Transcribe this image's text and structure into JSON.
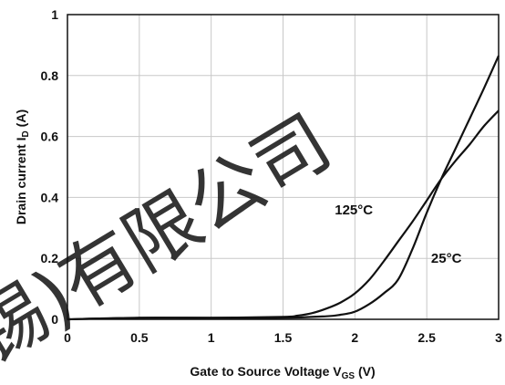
{
  "chart_data": {
    "type": "line",
    "title": "",
    "xlabel": "Gate to Source Voltage V",
    "xlabel_sub": "GS",
    "xlabel_unit": " (V)",
    "ylabel": "Drain current I",
    "ylabel_sub": "D",
    "ylabel_unit": " (A)",
    "xlim": [
      0,
      3
    ],
    "ylim": [
      0,
      1
    ],
    "xticks": [
      0,
      0.5,
      1,
      1.5,
      2,
      2.5,
      3
    ],
    "xtick_labels": [
      "0",
      "0.5",
      "1",
      "1.5",
      "2",
      "2.5",
      "3"
    ],
    "yticks": [
      0,
      0.2,
      0.4,
      0.6,
      0.8,
      1
    ],
    "ytick_labels": [
      "0",
      "0.2",
      "0.4",
      "0.6",
      "0.8",
      "1"
    ],
    "grid": true,
    "series": [
      {
        "name": "125°C",
        "color": "#111111",
        "x": [
          0,
          0.5,
          1.0,
          1.5,
          1.6,
          1.7,
          1.8,
          1.9,
          2.0,
          2.1,
          2.2,
          2.3,
          2.4,
          2.5,
          2.6,
          2.7,
          2.8,
          2.9,
          3.0
        ],
        "y": [
          0.0,
          0.005,
          0.005,
          0.008,
          0.012,
          0.02,
          0.035,
          0.055,
          0.085,
          0.13,
          0.19,
          0.255,
          0.32,
          0.39,
          0.46,
          0.52,
          0.575,
          0.635,
          0.685
        ]
      },
      {
        "name": "25°C",
        "color": "#111111",
        "x": [
          0,
          0.5,
          1.0,
          1.5,
          1.8,
          1.9,
          2.0,
          2.1,
          2.2,
          2.3,
          2.4,
          2.5,
          2.6,
          2.7,
          2.8,
          2.9,
          3.0
        ],
        "y": [
          0.0,
          0.005,
          0.005,
          0.005,
          0.01,
          0.015,
          0.025,
          0.05,
          0.085,
          0.13,
          0.23,
          0.35,
          0.46,
          0.56,
          0.66,
          0.76,
          0.865
        ]
      }
    ],
    "annotations": [
      {
        "text": "125°C",
        "x": 1.86,
        "y": 0.36
      },
      {
        "text": "25°C",
        "x": 2.53,
        "y": 0.2
      }
    ]
  },
  "watermark": {
    "text": "锡)有限公司",
    "color": "#d8d8d8"
  }
}
